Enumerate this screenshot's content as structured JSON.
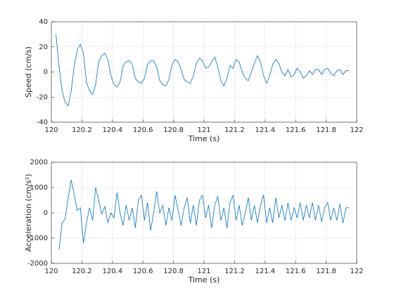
{
  "chart_data": [
    {
      "type": "line",
      "xlabel": "Time (s)",
      "ylabel": "Speed (cm/s)",
      "color": "#0072bd",
      "grid": true,
      "xlim": [
        120,
        122
      ],
      "xticks": [
        120,
        120.2,
        120.4,
        120.6,
        120.8,
        121,
        121.2,
        121.4,
        121.6,
        121.8,
        122
      ],
      "ylim": [
        -40,
        40
      ],
      "yticks": [
        -40,
        -20,
        0,
        20,
        40
      ],
      "x": [
        120.03,
        120.05,
        120.07,
        120.09,
        120.11,
        120.13,
        120.15,
        120.17,
        120.19,
        120.21,
        120.23,
        120.25,
        120.27,
        120.29,
        120.31,
        120.33,
        120.35,
        120.37,
        120.39,
        120.41,
        120.43,
        120.45,
        120.47,
        120.49,
        120.51,
        120.53,
        120.55,
        120.57,
        120.59,
        120.61,
        120.63,
        120.65,
        120.67,
        120.69,
        120.71,
        120.73,
        120.75,
        120.77,
        120.79,
        120.81,
        120.83,
        120.85,
        120.87,
        120.89,
        120.91,
        120.93,
        120.95,
        120.97,
        120.99,
        121.01,
        121.03,
        121.05,
        121.07,
        121.09,
        121.11,
        121.13,
        121.15,
        121.17,
        121.19,
        121.21,
        121.23,
        121.25,
        121.27,
        121.29,
        121.31,
        121.33,
        121.35,
        121.37,
        121.39,
        121.41,
        121.43,
        121.45,
        121.47,
        121.49,
        121.51,
        121.53,
        121.55,
        121.57,
        121.59,
        121.61,
        121.63,
        121.65,
        121.67,
        121.69,
        121.71,
        121.73,
        121.75,
        121.77,
        121.79,
        121.81,
        121.83,
        121.85,
        121.87,
        121.89,
        121.91,
        121.93,
        121.95
      ],
      "values": [
        30,
        5,
        -15,
        -24,
        -27,
        -15,
        5,
        18,
        22,
        15,
        -8,
        -15,
        -18,
        -10,
        8,
        13,
        15,
        10,
        -3,
        -10,
        -12,
        -8,
        5,
        8,
        9,
        6,
        -5,
        -8,
        -9,
        -5,
        6,
        9,
        9,
        4,
        -7,
        -10,
        -11,
        -6,
        6,
        10,
        8,
        2,
        -6,
        -8,
        -9,
        -3,
        7,
        11,
        9,
        3,
        4,
        8,
        12,
        4,
        -7,
        -11,
        -5,
        5,
        3,
        10,
        8,
        0,
        -5,
        -7,
        0,
        7,
        13,
        8,
        -3,
        -9,
        -3,
        6,
        10,
        7,
        0,
        -3,
        2,
        -4,
        -2,
        3,
        0,
        -5,
        -3,
        1,
        -2,
        2,
        2,
        -2,
        2,
        3,
        -1,
        -3,
        1,
        2,
        -2,
        1,
        1
      ]
    },
    {
      "type": "line",
      "xlabel": "Time (s)",
      "ylabel": "Acceleration (cm/s²)",
      "color": "#0072bd",
      "grid": true,
      "xlim": [
        120,
        122
      ],
      "xticks": [
        120,
        120.2,
        120.4,
        120.6,
        120.8,
        121,
        121.2,
        121.4,
        121.6,
        121.8,
        122
      ],
      "ylim": [
        -2000,
        2000
      ],
      "yticks": [
        -2000,
        -1000,
        0,
        1000,
        2000
      ],
      "x": [
        120.05,
        120.07,
        120.09,
        120.11,
        120.13,
        120.15,
        120.17,
        120.19,
        120.21,
        120.23,
        120.25,
        120.27,
        120.29,
        120.31,
        120.33,
        120.35,
        120.37,
        120.39,
        120.41,
        120.43,
        120.45,
        120.47,
        120.49,
        120.51,
        120.53,
        120.55,
        120.57,
        120.59,
        120.61,
        120.63,
        120.65,
        120.67,
        120.69,
        120.71,
        120.73,
        120.75,
        120.77,
        120.79,
        120.81,
        120.83,
        120.85,
        120.87,
        120.89,
        120.91,
        120.93,
        120.95,
        120.97,
        120.99,
        121.01,
        121.03,
        121.05,
        121.07,
        121.09,
        121.11,
        121.13,
        121.15,
        121.17,
        121.19,
        121.21,
        121.23,
        121.25,
        121.27,
        121.29,
        121.31,
        121.33,
        121.35,
        121.37,
        121.39,
        121.41,
        121.43,
        121.45,
        121.47,
        121.49,
        121.51,
        121.53,
        121.55,
        121.57,
        121.59,
        121.61,
        121.63,
        121.65,
        121.67,
        121.69,
        121.71,
        121.73,
        121.75,
        121.77,
        121.79,
        121.81,
        121.83,
        121.85,
        121.87,
        121.89,
        121.91,
        121.93,
        121.95
      ],
      "values": [
        -1450,
        -400,
        -250,
        600,
        1300,
        700,
        100,
        200,
        -1200,
        -400,
        200,
        -300,
        1000,
        500,
        -50,
        250,
        -400,
        0,
        -200,
        800,
        0,
        -500,
        300,
        -300,
        200,
        -600,
        500,
        700,
        -300,
        400,
        -700,
        0,
        850,
        0,
        300,
        -500,
        200,
        -300,
        700,
        100,
        -500,
        200,
        600,
        -400,
        300,
        -500,
        500,
        700,
        -200,
        300,
        -600,
        300,
        650,
        -300,
        200,
        -600,
        400,
        700,
        -300,
        300,
        -500,
        0,
        600,
        -300,
        300,
        -400,
        300,
        700,
        -400,
        200,
        -400,
        600,
        -200,
        300,
        -300,
        400,
        -300,
        200,
        -200,
        400,
        -300,
        300,
        -200,
        400,
        -300,
        300,
        -350,
        200,
        400,
        -300,
        200,
        -300,
        350,
        -400,
        200,
        200
      ]
    }
  ]
}
